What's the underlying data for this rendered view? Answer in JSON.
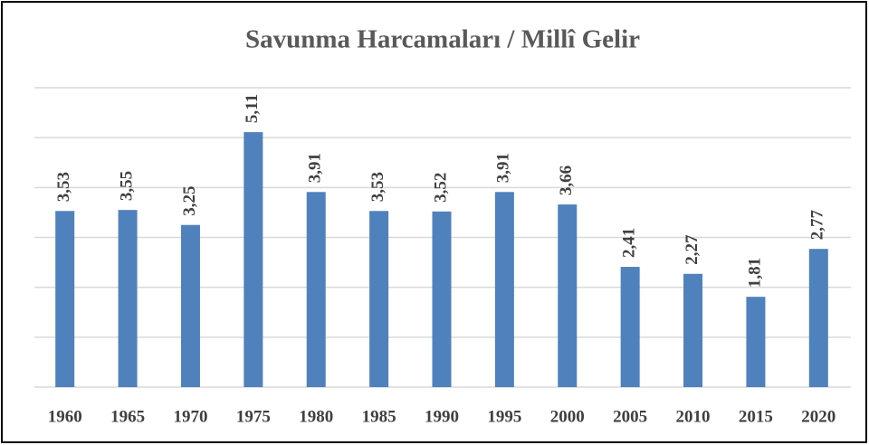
{
  "chart_data": {
    "type": "bar",
    "title": "Savunma  Harcamaları  / Millî Gelir",
    "categories": [
      "1960",
      "1965",
      "1970",
      "1975",
      "1980",
      "1985",
      "1990",
      "1995",
      "2000",
      "2005",
      "2010",
      "2015",
      "2020"
    ],
    "values": [
      3.53,
      3.55,
      3.25,
      5.11,
      3.91,
      3.53,
      3.52,
      3.91,
      3.66,
      2.41,
      2.27,
      1.81,
      2.77
    ],
    "value_labels": [
      "3,53",
      "3,55",
      "3,25",
      "5,11",
      "3,91",
      "3,53",
      "3,52",
      "3,91",
      "3,66",
      "2,41",
      "2,27",
      "1,81",
      "2,77"
    ],
    "color": "#4f81bd",
    "ylim": [
      0,
      6
    ],
    "yticks": [
      0,
      1,
      2,
      3,
      4,
      5,
      6
    ],
    "grid": true
  }
}
